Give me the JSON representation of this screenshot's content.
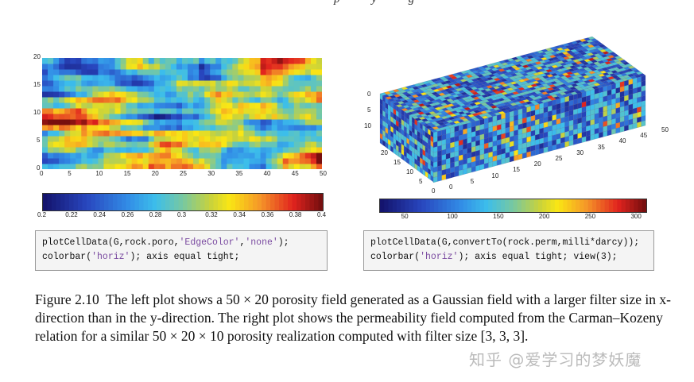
{
  "header_fragment": "p y g",
  "left_plot": {
    "x_ticks": [
      "0",
      "5",
      "10",
      "15",
      "20",
      "25",
      "30",
      "35",
      "40",
      "45",
      "50"
    ],
    "y_ticks": [
      "0",
      "5",
      "10",
      "15",
      "20"
    ],
    "xlim": [
      0,
      50
    ],
    "ylim": [
      0,
      20
    ],
    "colorbar_ticks": [
      "0.2",
      "0.22",
      "0.24",
      "0.26",
      "0.28",
      "0.3",
      "0.32",
      "0.34",
      "0.36",
      "0.38",
      "0.4"
    ],
    "colorbar_range": [
      0.2,
      0.4
    ],
    "code_line1_parts": [
      "plotCellData(G,rock.poro,",
      "'EdgeColor'",
      ",",
      "'none'",
      ");"
    ],
    "code_line2_parts": [
      "colorbar(",
      "'horiz'",
      "); axis equal tight;"
    ]
  },
  "right_plot": {
    "x_ticks": [
      "0",
      "5",
      "10",
      "15",
      "20",
      "25",
      "30",
      "35",
      "40",
      "45",
      "50"
    ],
    "y_ticks": [
      "0",
      "5",
      "10",
      "15",
      "20"
    ],
    "z_ticks": [
      "0",
      "5",
      "10"
    ],
    "colorbar_ticks": [
      "50",
      "100",
      "150",
      "200",
      "250",
      "300"
    ],
    "colorbar_range": [
      20,
      310
    ],
    "code_line1_parts": [
      "plotCellData(G,convertTo(rock.perm,milli*darcy));"
    ],
    "code_line2_parts": [
      "colorbar(",
      "'horiz'",
      "); axis equal tight; view(3);"
    ]
  },
  "caption": {
    "label": "Figure 2.10",
    "text": "The left plot shows a 50 × 20 porosity field generated as a Gaussian field with a larger filter size in x-direction than in the y-direction. The right plot shows the permeability field computed from the Carman–Kozeny relation for a similar 50 × 20 × 10 porosity realization computed with filter size [3, 3, 3]."
  },
  "watermark": "知乎 @爱学习的梦妖魔",
  "colors": {
    "code_string": "#7a4aa0",
    "code_bg": "#f4f4f4"
  }
}
